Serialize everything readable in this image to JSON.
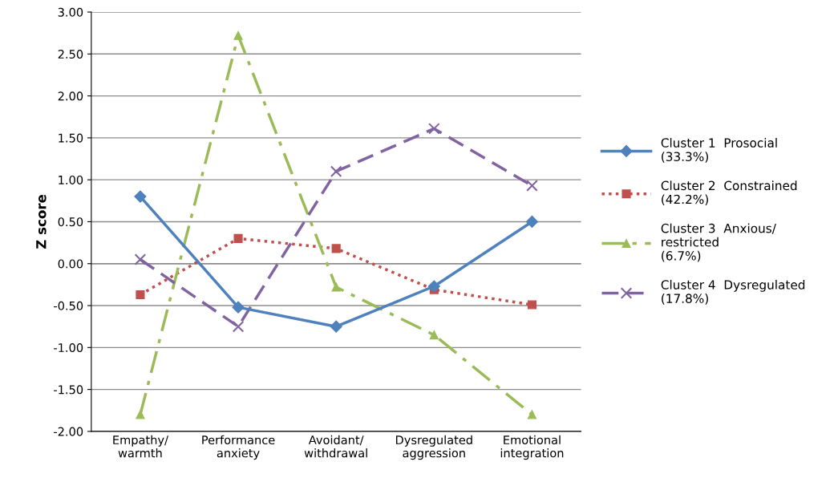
{
  "chart_data": {
    "type": "line",
    "ylabel": "Z score",
    "categories": [
      "Empathy/\nwarmth",
      "Performance\nanxiety",
      "Avoidant/\nwithdrawal",
      "Dysregulated\naggression",
      "Emotional\nintegration"
    ],
    "ylim": [
      -2.0,
      3.0
    ],
    "yticks": [
      {
        "value": -2.0,
        "label": "-2.00"
      },
      {
        "value": -1.5,
        "label": "-1.50"
      },
      {
        "value": -1.0,
        "label": "-1.00"
      },
      {
        "value": -0.5,
        "label": "-0.50"
      },
      {
        "value": 0.0,
        "label": "0.00"
      },
      {
        "value": 0.5,
        "label": "0.50"
      },
      {
        "value": 1.0,
        "label": "1.00"
      },
      {
        "value": 1.5,
        "label": "1.50"
      },
      {
        "value": 2.0,
        "label": "2.00"
      },
      {
        "value": 2.5,
        "label": "2.50"
      },
      {
        "value": 3.0,
        "label": "3.00"
      }
    ],
    "grid": "y",
    "legend": "right",
    "series": [
      {
        "name": "Cluster 1  Prosocial\n(33.3%)",
        "color": "#4f81bd",
        "marker": "diamond",
        "line_style": "solid",
        "values": [
          0.8,
          -0.52,
          -0.75,
          -0.27,
          0.5
        ]
      },
      {
        "name": "Cluster 2  Constrained\n(42.2%)",
        "color": "#c0504d",
        "marker": "square",
        "line_style": "dotted",
        "values": [
          -0.37,
          0.3,
          0.18,
          -0.31,
          -0.49
        ]
      },
      {
        "name": "Cluster 3  Anxious/\nrestricted\n(6.7%)",
        "color": "#9bbb59",
        "marker": "triangle",
        "line_style": "dashdot",
        "values": [
          -1.8,
          2.72,
          -0.28,
          -0.85,
          -1.8
        ]
      },
      {
        "name": "Cluster 4  Dysregulated\n(17.8%)",
        "color": "#8064a2",
        "marker": "cross",
        "line_style": "dashed",
        "values": [
          0.05,
          -0.75,
          1.1,
          1.61,
          0.93
        ]
      }
    ]
  }
}
